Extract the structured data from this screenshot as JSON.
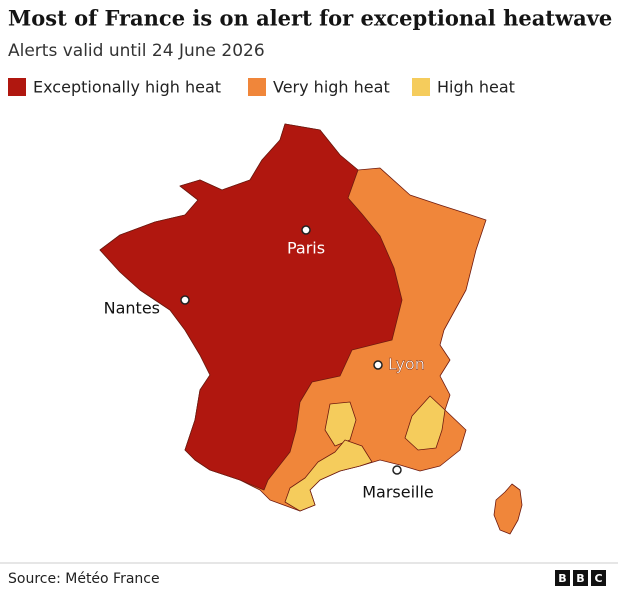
{
  "title": "Most of France is on alert for exceptional heatwave",
  "subtitle": "Alerts valid until 24 June 2026",
  "legend": [
    {
      "label": "Exceptionally high heat",
      "color": "#b0170f"
    },
    {
      "label": "Very high heat",
      "color": "#f0863a"
    },
    {
      "label": "High heat",
      "color": "#f5cc5c"
    }
  ],
  "cities": [
    "Paris",
    "Nantes",
    "Lyon",
    "Marseille"
  ],
  "source": "Source: Météo France",
  "logo": [
    "B",
    "B",
    "C"
  ]
}
